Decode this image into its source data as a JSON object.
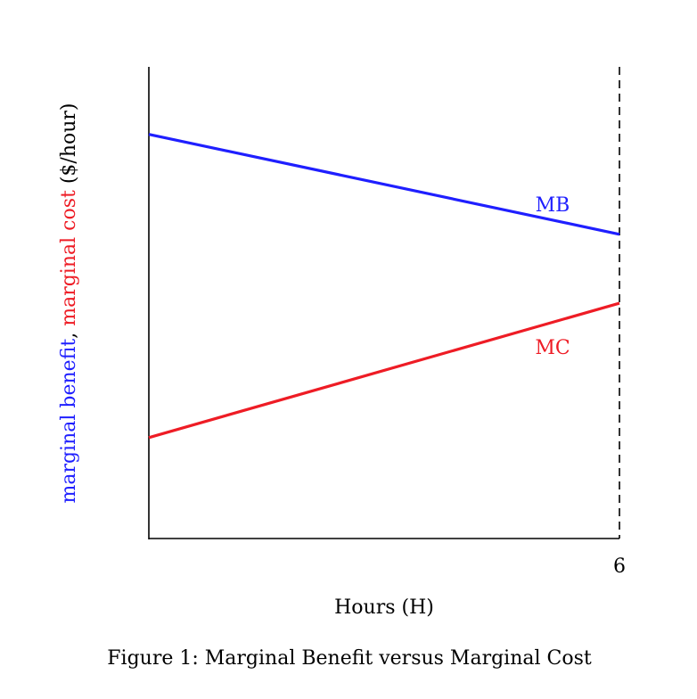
{
  "chart_data": {
    "type": "line",
    "title": "",
    "caption": "Figure 1: Marginal Benefit versus Marginal Cost",
    "xlabel": "Hours (H)",
    "ylabel_parts": [
      {
        "text": "marginal benefit",
        "color": "#1f1fff"
      },
      {
        "text": ", ",
        "color": "#000000"
      },
      {
        "text": "marginal cost",
        "color": "#ee1c25"
      },
      {
        "text": " ($/hour)",
        "color": "#000000"
      }
    ],
    "xlim": [
      0,
      6
    ],
    "ylim": [
      0,
      1
    ],
    "x_ticks": [
      {
        "value": 6,
        "label": "6"
      }
    ],
    "grid": false,
    "vertical_reference_line": {
      "x": 6,
      "style": "dashed"
    },
    "series": [
      {
        "name": "MB",
        "color": "#1f1fff",
        "x": [
          0,
          6
        ],
        "y": [
          0.857,
          0.645
        ]
      },
      {
        "name": "MC",
        "color": "#ee1c25",
        "x": [
          0,
          6
        ],
        "y": [
          0.214,
          0.499
        ]
      }
    ]
  }
}
